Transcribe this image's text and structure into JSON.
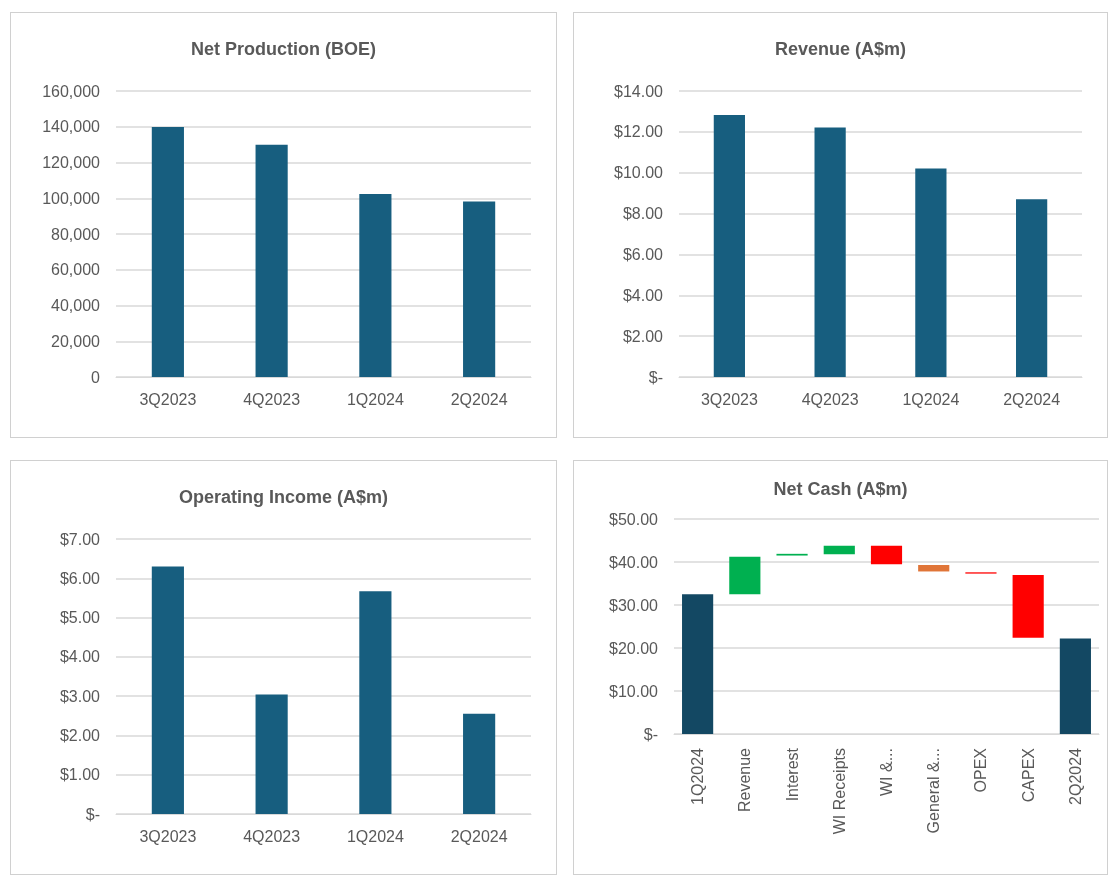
{
  "chart_data": [
    {
      "type": "bar",
      "title": "Net Production (BOE)",
      "categories": [
        "3Q2023",
        "4Q2023",
        "1Q2024",
        "2Q2024"
      ],
      "values": [
        139900,
        130000,
        102400,
        98200
      ],
      "color": "#175e7f",
      "ylim": [
        0,
        160000
      ],
      "yticks": [
        {
          "value": 0,
          "label": "0"
        },
        {
          "value": 20000,
          "label": "20,000"
        },
        {
          "value": 40000,
          "label": "40,000"
        },
        {
          "value": 60000,
          "label": "60,000"
        },
        {
          "value": 80000,
          "label": "80,000"
        },
        {
          "value": 100000,
          "label": "100,000"
        },
        {
          "value": 120000,
          "label": "120,000"
        },
        {
          "value": 140000,
          "label": "140,000"
        },
        {
          "value": 160000,
          "label": "160,000"
        }
      ],
      "grid": "y"
    },
    {
      "type": "bar",
      "title": "Revenue (A$m)",
      "categories": [
        "3Q2023",
        "4Q2023",
        "1Q2024",
        "2Q2024"
      ],
      "values": [
        12.83,
        12.21,
        10.21,
        8.7
      ],
      "color": "#175e7f",
      "ylim": [
        0,
        14
      ],
      "yticks": [
        {
          "value": 0,
          "label": "$-"
        },
        {
          "value": 2,
          "label": "$2.00"
        },
        {
          "value": 4,
          "label": "$4.00"
        },
        {
          "value": 6,
          "label": "$6.00"
        },
        {
          "value": 8,
          "label": "$8.00"
        },
        {
          "value": 10,
          "label": "$10.00"
        },
        {
          "value": 12,
          "label": "$12.00"
        },
        {
          "value": 14,
          "label": "$14.00"
        }
      ],
      "grid": "y"
    },
    {
      "type": "bar",
      "title": "Operating Income (A$m)",
      "categories": [
        "3Q2023",
        "4Q2023",
        "1Q2024",
        "2Q2024"
      ],
      "values": [
        6.3,
        3.04,
        5.67,
        2.55
      ],
      "color": "#175e7f",
      "ylim": [
        0,
        7
      ],
      "yticks": [
        {
          "value": 0,
          "label": "$-"
        },
        {
          "value": 1,
          "label": "$1.00"
        },
        {
          "value": 2,
          "label": "$2.00"
        },
        {
          "value": 3,
          "label": "$3.00"
        },
        {
          "value": 4,
          "label": "$4.00"
        },
        {
          "value": 5,
          "label": "$5.00"
        },
        {
          "value": 6,
          "label": "$6.00"
        },
        {
          "value": 7,
          "label": "$7.00"
        }
      ],
      "grid": "y"
    },
    {
      "type": "bar",
      "title": "Net Cash (A$m)",
      "categories": [
        "1Q2024",
        "Revenue",
        "Interest",
        "WI Receipts",
        "WI &...",
        "General &...",
        "OPEX",
        "CAPEX",
        "2Q2024"
      ],
      "values": [
        32.5,
        8.7,
        0.4,
        2.0,
        -4.3,
        -1.5,
        -0.3,
        -14.6,
        22.2
      ],
      "base": [
        0,
        32.5,
        41.5,
        41.8,
        43.8,
        39.3,
        37.6,
        37.0,
        0
      ],
      "colors": [
        "#134863",
        "#00b050",
        "#00b050",
        "#00b050",
        "#ff0000",
        "#e07538",
        "#ff0000",
        "#ff0000",
        "#134863"
      ],
      "ylim": [
        0,
        50
      ],
      "yticks": [
        {
          "value": 0,
          "label": "$-"
        },
        {
          "value": 10,
          "label": "$10.00"
        },
        {
          "value": 20,
          "label": "$20.00"
        },
        {
          "value": 30,
          "label": "$30.00"
        },
        {
          "value": 40,
          "label": "$40.00"
        },
        {
          "value": 50,
          "label": "$50.00"
        }
      ],
      "grid": "y"
    }
  ]
}
